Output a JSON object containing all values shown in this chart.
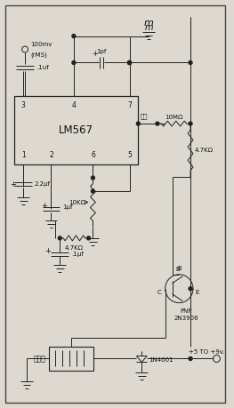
{
  "bg_color": "#ddd9d0",
  "border_color": "#444444",
  "line_color": "#222222",
  "text_color": "#111111",
  "ic_label": "LM567",
  "component_labels": {
    "r1": "10MΩ",
    "r2": "4.7KΩ",
    "r3": "10KΩ",
    "r4": "4.7KΩ",
    "c1": ".1uf",
    "c2": "1pf",
    "c3": "2.2μf",
    "c4": "1μf",
    "c5": ".1μf",
    "transistor_label": "PNP\n2N3906",
    "diode": "1N4001",
    "relay": "继电器",
    "input_line1": "100mv",
    "input_line2": "(rMS)",
    "output": "+5 TO +9v.",
    "output_label": "输出"
  },
  "figsize": [
    2.63,
    4.59
  ],
  "dpi": 100
}
